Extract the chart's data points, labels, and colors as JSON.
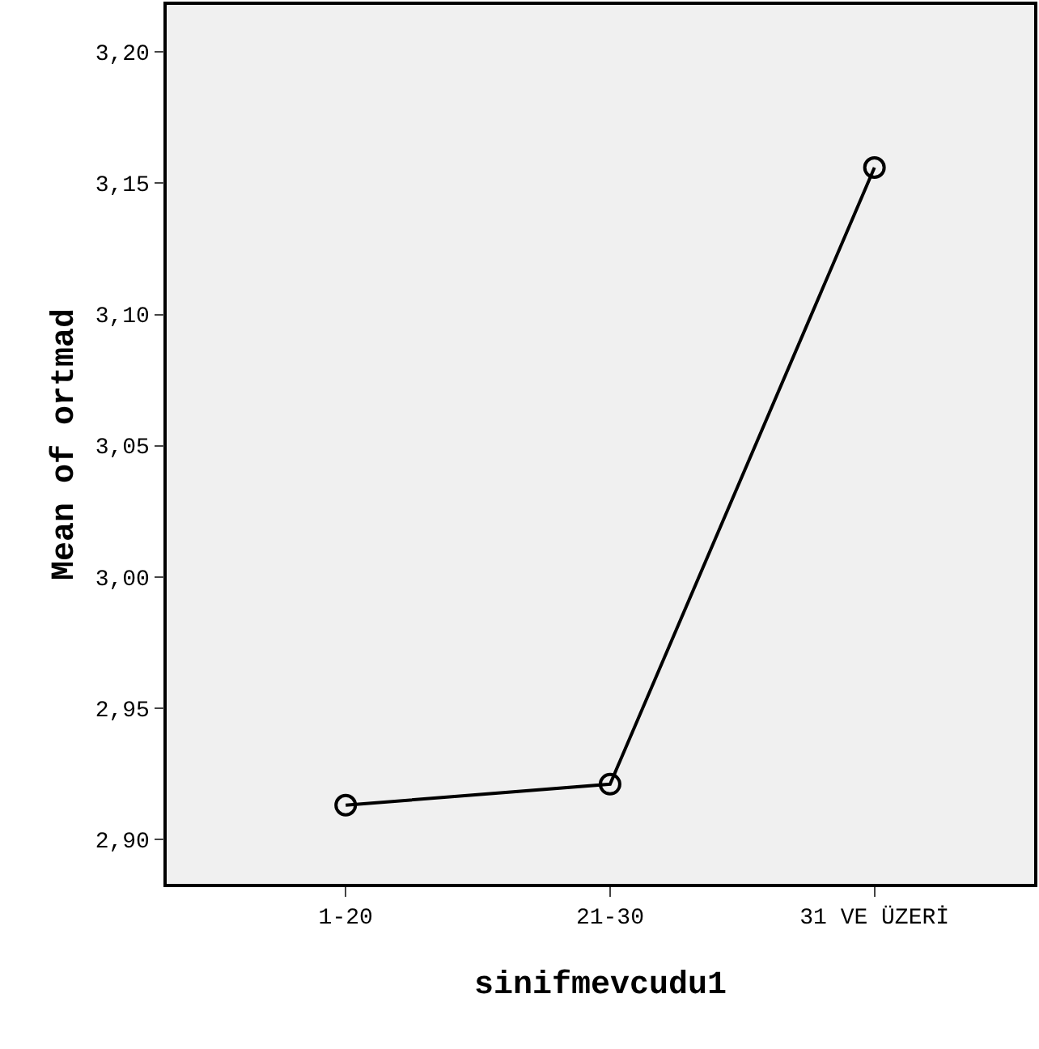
{
  "chart_data": {
    "type": "line",
    "xlabel": "sinifmevcudu1",
    "ylabel": "Mean of ortmad",
    "categories": [
      "1-20",
      "21-30",
      "31 VE ÜZERİ"
    ],
    "series": [
      {
        "color": "#000000",
        "values": [
          2.913,
          2.921,
          3.156
        ]
      }
    ],
    "ylim": [
      2.883,
      3.218
    ],
    "yticks": [
      {
        "value": 2.9,
        "label": "2,90"
      },
      {
        "value": 2.95,
        "label": "2,95"
      },
      {
        "value": 3.0,
        "label": "3,00"
      },
      {
        "value": 3.05,
        "label": "3,05"
      },
      {
        "value": 3.1,
        "label": "3,10"
      },
      {
        "value": 3.15,
        "label": "3,15"
      },
      {
        "value": 3.2,
        "label": "3,20"
      }
    ],
    "grid": false,
    "marker": "circle",
    "line_style": "solid"
  }
}
